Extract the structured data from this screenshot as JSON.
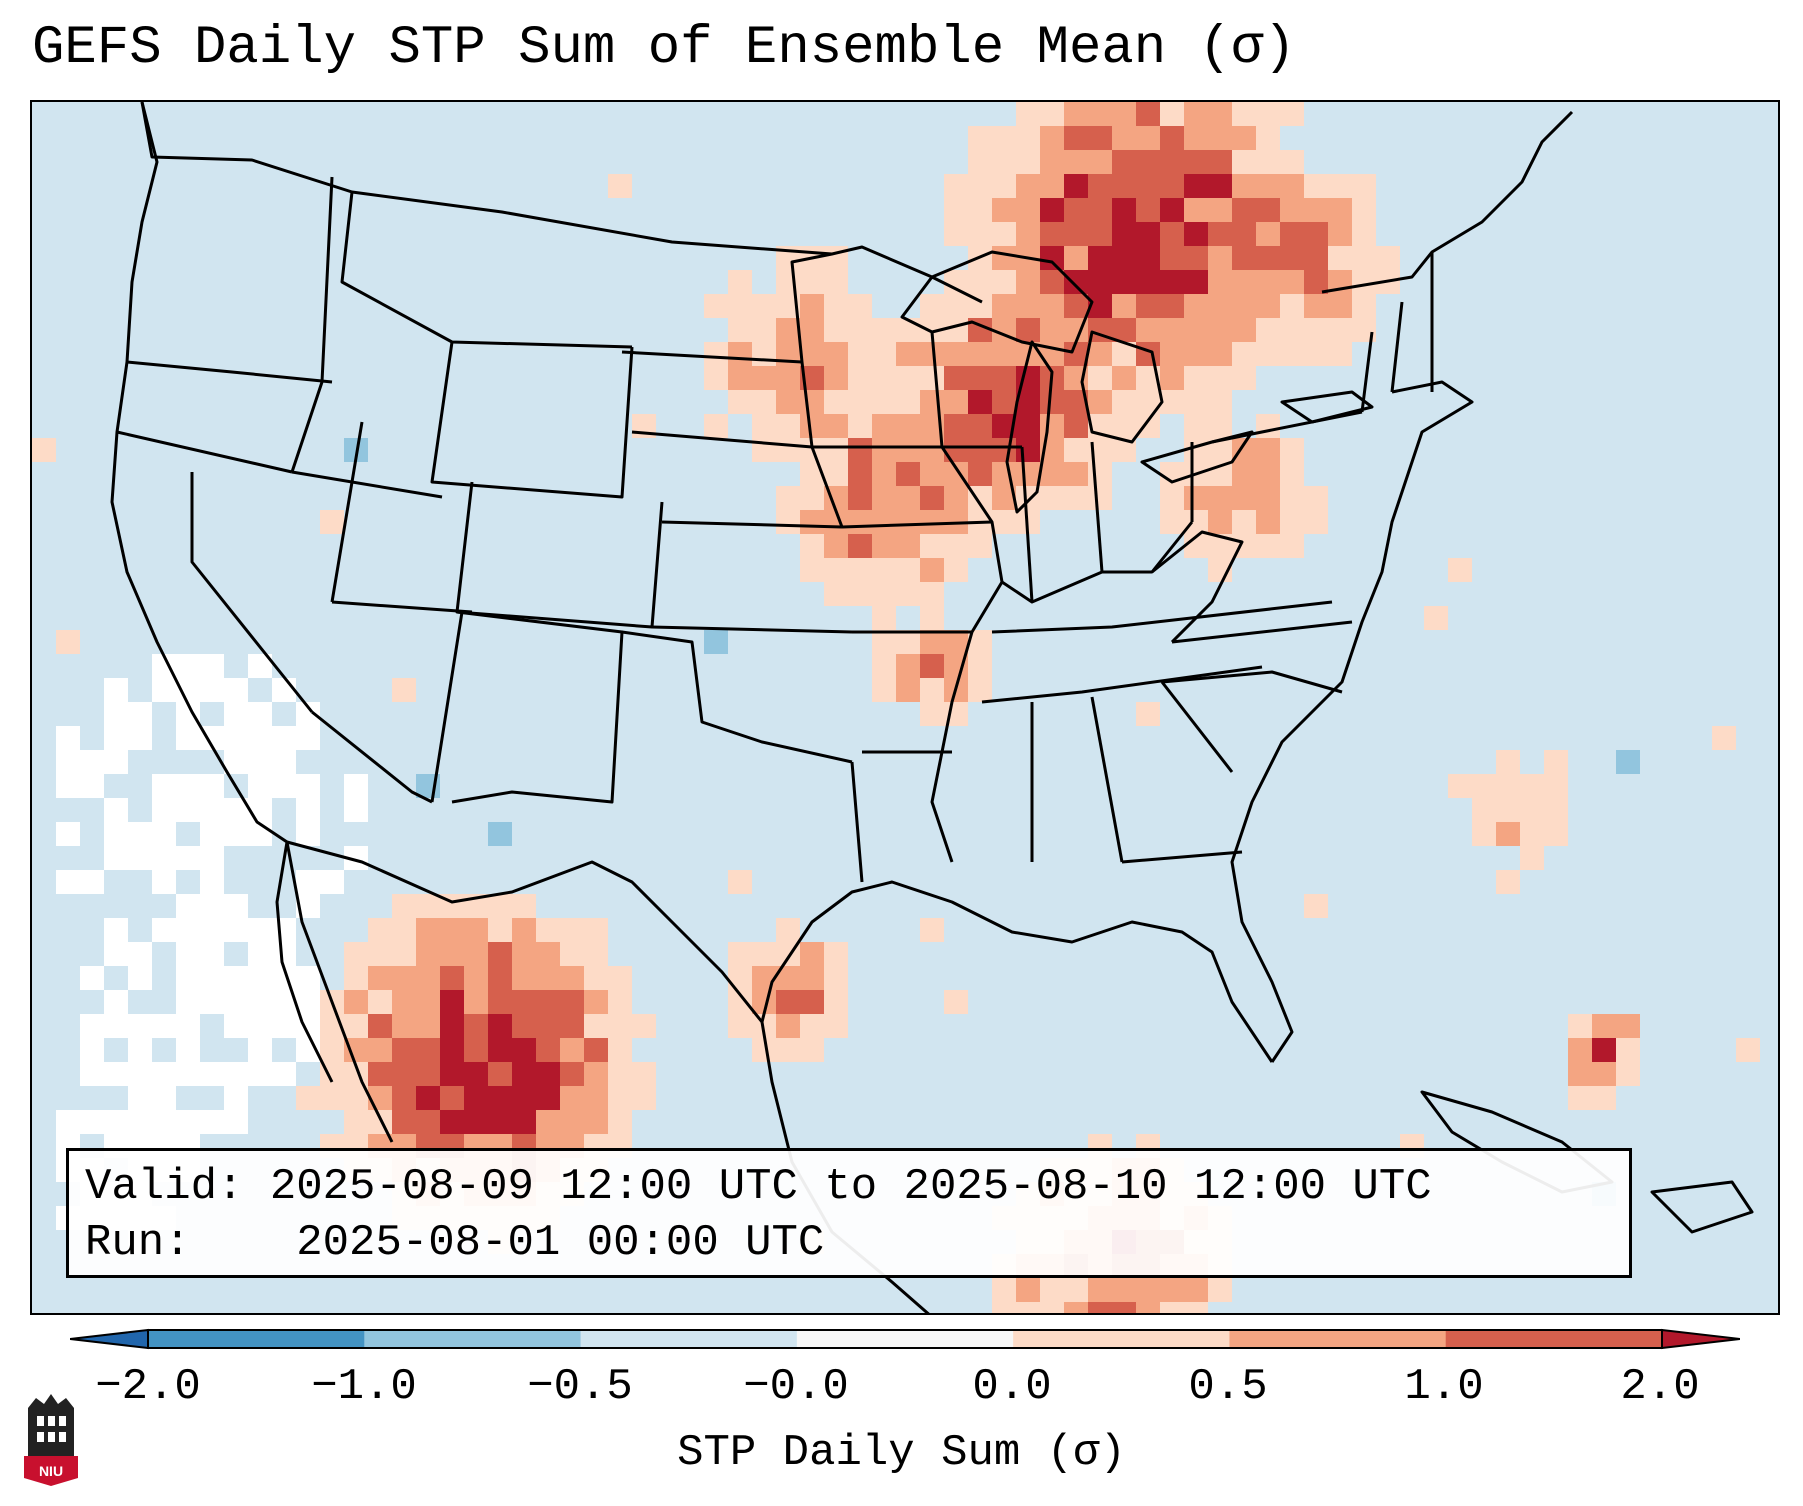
{
  "title": "GEFS Daily STP Sum of Ensemble Mean (σ)",
  "info": {
    "valid_label": "Valid:",
    "valid_text": "2025-08-09 12:00 UTC to 2025-08-10 12:00 UTC",
    "run_label": "Run:",
    "run_text": "2025-08-01 00:00 UTC"
  },
  "colorbar": {
    "label": "STP Daily Sum (σ)",
    "ticks": [
      "−2.0",
      "−1.0",
      "−0.5",
      "−0.0",
      "0.0",
      "0.5",
      "1.0",
      "2.0"
    ],
    "colors": [
      "#2166ac",
      "#4393c3",
      "#92c5de",
      "#d1e5f0",
      "#f7f7f7",
      "#fddbc7",
      "#f4a582",
      "#d6604d",
      "#b2182b"
    ]
  },
  "logo": {
    "text": "NIU"
  },
  "map_colors": {
    "background": "#d1e5f0",
    "neutral": "#ffffff",
    "light_pos": "#fddbc7",
    "mid_pos": "#f4a582",
    "high_pos": "#d6604d",
    "max_pos": "#b2182b",
    "light_neg": "#92c5de"
  }
}
